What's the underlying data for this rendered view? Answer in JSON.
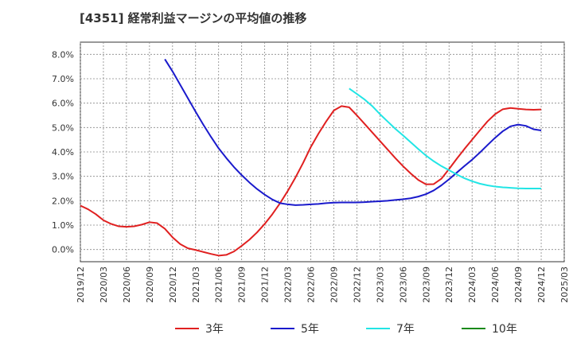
{
  "chart_data": {
    "type": "line",
    "title": "[4351]  経常利益マージンの平均値の推移",
    "xlabel": "",
    "ylabel": "",
    "ylim": [
      -0.5,
      8.5
    ],
    "yticks": [
      0.0,
      1.0,
      2.0,
      3.0,
      4.0,
      5.0,
      6.0,
      7.0,
      8.0
    ],
    "ytick_labels": [
      "0.0%",
      "1.0%",
      "2.0%",
      "3.0%",
      "4.0%",
      "5.0%",
      "6.0%",
      "7.0%",
      "8.0%"
    ],
    "x_tick_labels": [
      "2019/12",
      "2020/03",
      "2020/06",
      "2020/09",
      "2020/12",
      "2021/03",
      "2021/06",
      "2021/09",
      "2021/12",
      "2022/03",
      "2022/06",
      "2022/09",
      "2022/12",
      "2023/03",
      "2023/06",
      "2023/09",
      "2023/12",
      "2024/03",
      "2024/06",
      "2024/09",
      "2024/12",
      "2025/03"
    ],
    "grid": true,
    "legend_position": "bottom",
    "series": [
      {
        "name": "3年",
        "color": "#e02020",
        "values": [
          [
            "2019/12",
            1.8
          ],
          [
            "2020/01",
            1.65
          ],
          [
            "2020/02",
            1.45
          ],
          [
            "2020/03",
            1.2
          ],
          [
            "2020/04",
            1.05
          ],
          [
            "2020/05",
            0.95
          ],
          [
            "2020/06",
            0.93
          ],
          [
            "2020/07",
            0.95
          ],
          [
            "2020/08",
            1.02
          ],
          [
            "2020/09",
            1.12
          ],
          [
            "2020/10",
            1.08
          ],
          [
            "2020/11",
            0.85
          ],
          [
            "2020/12",
            0.5
          ],
          [
            "2021/01",
            0.22
          ],
          [
            "2021/02",
            0.05
          ],
          [
            "2021/03",
            -0.02
          ],
          [
            "2021/04",
            -0.1
          ],
          [
            "2021/05",
            -0.18
          ],
          [
            "2021/06",
            -0.25
          ],
          [
            "2021/07",
            -0.22
          ],
          [
            "2021/08",
            -0.08
          ],
          [
            "2021/09",
            0.15
          ],
          [
            "2021/10",
            0.4
          ],
          [
            "2021/11",
            0.7
          ],
          [
            "2021/12",
            1.05
          ],
          [
            "2022/01",
            1.45
          ],
          [
            "2022/02",
            1.9
          ],
          [
            "2022/03",
            2.4
          ],
          [
            "2022/04",
            2.95
          ],
          [
            "2022/05",
            3.55
          ],
          [
            "2022/06",
            4.2
          ],
          [
            "2022/07",
            4.75
          ],
          [
            "2022/08",
            5.25
          ],
          [
            "2022/09",
            5.7
          ],
          [
            "2022/10",
            5.88
          ],
          [
            "2022/11",
            5.83
          ],
          [
            "2022/12",
            5.5
          ],
          [
            "2023/01",
            5.15
          ],
          [
            "2023/02",
            4.8
          ],
          [
            "2023/03",
            4.45
          ],
          [
            "2023/04",
            4.1
          ],
          [
            "2023/05",
            3.75
          ],
          [
            "2023/06",
            3.42
          ],
          [
            "2023/07",
            3.12
          ],
          [
            "2023/08",
            2.85
          ],
          [
            "2023/09",
            2.67
          ],
          [
            "2023/10",
            2.68
          ],
          [
            "2023/11",
            2.9
          ],
          [
            "2023/12",
            3.3
          ],
          [
            "2024/01",
            3.72
          ],
          [
            "2024/02",
            4.12
          ],
          [
            "2024/03",
            4.5
          ],
          [
            "2024/04",
            4.88
          ],
          [
            "2024/05",
            5.25
          ],
          [
            "2024/06",
            5.55
          ],
          [
            "2024/07",
            5.75
          ],
          [
            "2024/08",
            5.8
          ],
          [
            "2024/09",
            5.77
          ],
          [
            "2024/10",
            5.74
          ],
          [
            "2024/11",
            5.73
          ],
          [
            "2024/12",
            5.74
          ]
        ]
      },
      {
        "name": "5年",
        "color": "#1a1acc",
        "values": [
          [
            "2020/11",
            7.8
          ],
          [
            "2020/12",
            7.3
          ],
          [
            "2021/01",
            6.75
          ],
          [
            "2021/02",
            6.2
          ],
          [
            "2021/03",
            5.65
          ],
          [
            "2021/04",
            5.12
          ],
          [
            "2021/05",
            4.62
          ],
          [
            "2021/06",
            4.15
          ],
          [
            "2021/07",
            3.75
          ],
          [
            "2021/08",
            3.38
          ],
          [
            "2021/09",
            3.05
          ],
          [
            "2021/10",
            2.75
          ],
          [
            "2021/11",
            2.48
          ],
          [
            "2021/12",
            2.25
          ],
          [
            "2022/01",
            2.05
          ],
          [
            "2022/02",
            1.9
          ],
          [
            "2022/03",
            1.85
          ],
          [
            "2022/04",
            1.82
          ],
          [
            "2022/05",
            1.83
          ],
          [
            "2022/06",
            1.85
          ],
          [
            "2022/07",
            1.87
          ],
          [
            "2022/08",
            1.9
          ],
          [
            "2022/09",
            1.92
          ],
          [
            "2022/10",
            1.93
          ],
          [
            "2022/11",
            1.93
          ],
          [
            "2022/12",
            1.93
          ],
          [
            "2023/01",
            1.94
          ],
          [
            "2023/02",
            1.96
          ],
          [
            "2023/03",
            1.98
          ],
          [
            "2023/04",
            2.0
          ],
          [
            "2023/05",
            2.03
          ],
          [
            "2023/06",
            2.06
          ],
          [
            "2023/07",
            2.1
          ],
          [
            "2023/08",
            2.17
          ],
          [
            "2023/09",
            2.27
          ],
          [
            "2023/10",
            2.42
          ],
          [
            "2023/11",
            2.63
          ],
          [
            "2023/12",
            2.88
          ],
          [
            "2024/01",
            3.15
          ],
          [
            "2024/02",
            3.42
          ],
          [
            "2024/03",
            3.68
          ],
          [
            "2024/04",
            3.97
          ],
          [
            "2024/05",
            4.28
          ],
          [
            "2024/06",
            4.58
          ],
          [
            "2024/07",
            4.85
          ],
          [
            "2024/08",
            5.05
          ],
          [
            "2024/09",
            5.12
          ],
          [
            "2024/10",
            5.07
          ],
          [
            "2024/11",
            4.93
          ],
          [
            "2024/12",
            4.88
          ]
        ]
      },
      {
        "name": "7年",
        "color": "#22e5e5",
        "values": [
          [
            "2022/11",
            6.6
          ],
          [
            "2022/12",
            6.38
          ],
          [
            "2023/01",
            6.15
          ],
          [
            "2023/02",
            5.88
          ],
          [
            "2023/03",
            5.55
          ],
          [
            "2023/04",
            5.25
          ],
          [
            "2023/05",
            4.95
          ],
          [
            "2023/06",
            4.68
          ],
          [
            "2023/07",
            4.4
          ],
          [
            "2023/08",
            4.12
          ],
          [
            "2023/09",
            3.85
          ],
          [
            "2023/10",
            3.62
          ],
          [
            "2023/11",
            3.42
          ],
          [
            "2023/12",
            3.25
          ],
          [
            "2024/01",
            3.08
          ],
          [
            "2024/02",
            2.92
          ],
          [
            "2024/03",
            2.8
          ],
          [
            "2024/04",
            2.7
          ],
          [
            "2024/05",
            2.63
          ],
          [
            "2024/06",
            2.58
          ],
          [
            "2024/07",
            2.55
          ],
          [
            "2024/08",
            2.53
          ],
          [
            "2024/09",
            2.51
          ],
          [
            "2024/10",
            2.5
          ],
          [
            "2024/11",
            2.5
          ],
          [
            "2024/12",
            2.5
          ]
        ]
      },
      {
        "name": "10年",
        "color": "#1a8a1a",
        "values": []
      }
    ]
  }
}
